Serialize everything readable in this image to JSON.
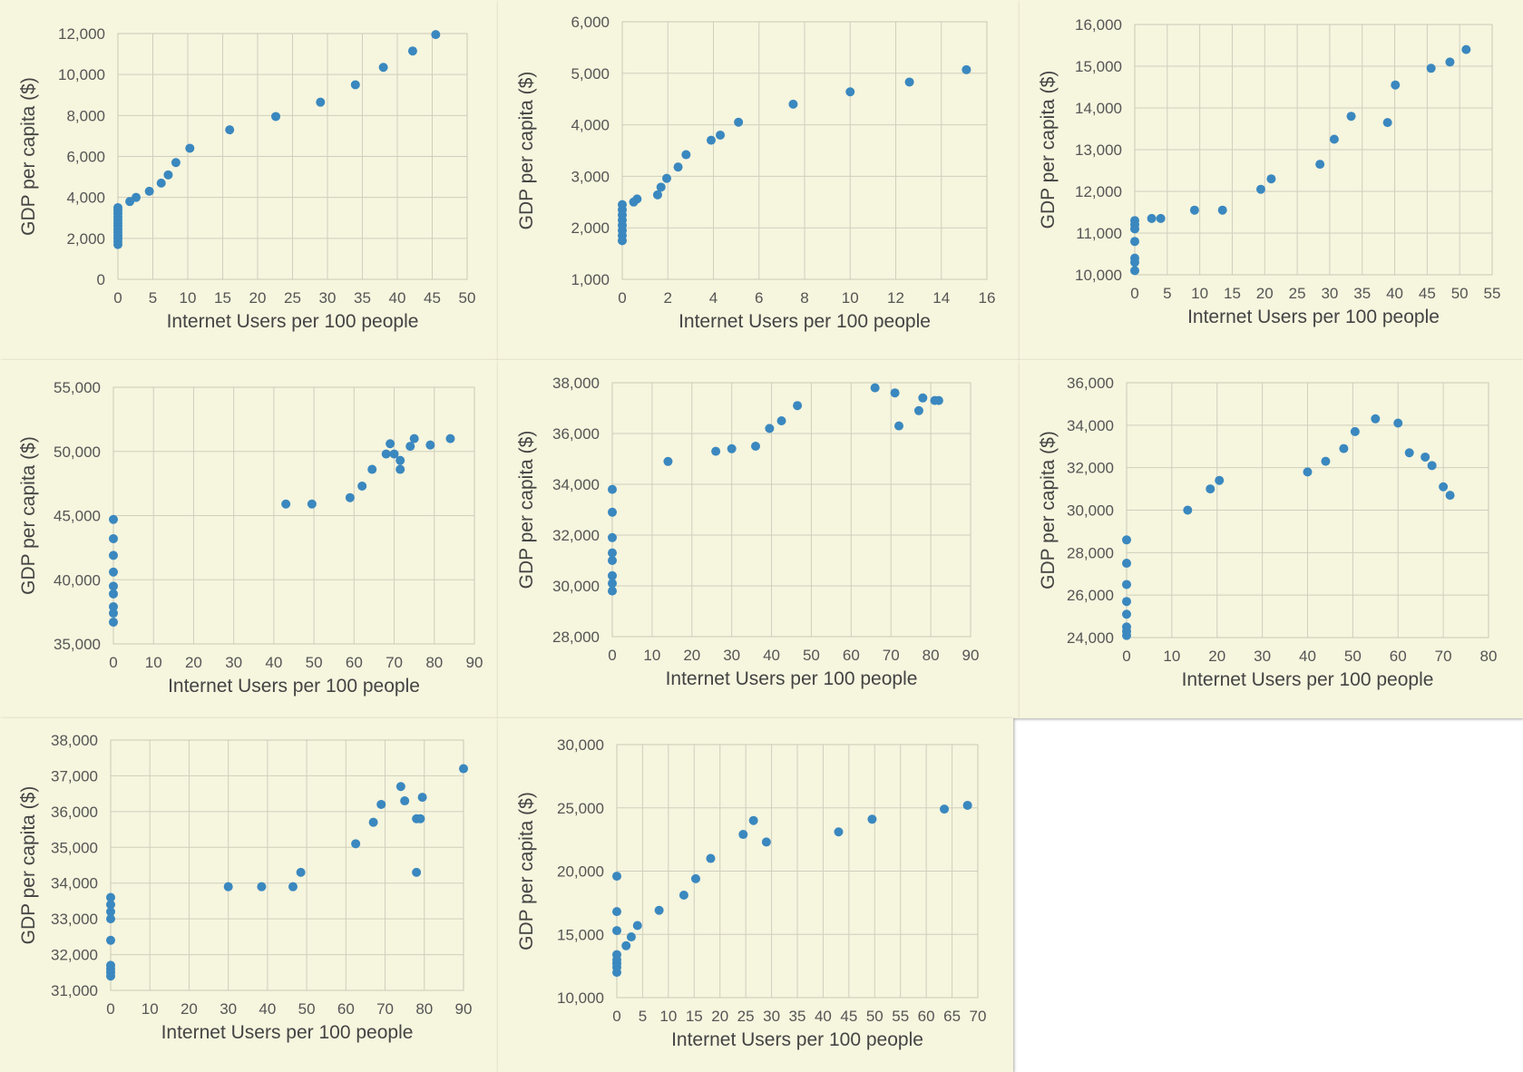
{
  "colors": {
    "point": "#3a88bf",
    "panel": "#f6f5de",
    "grid": "#cfcfbd"
  },
  "chart_data": [
    {
      "type": "scatter",
      "xlabel": "Internet Users per 100 people",
      "ylabel": "GDP per capita ($)",
      "xlim": [
        0,
        50
      ],
      "ylim": [
        0,
        12000
      ],
      "xticks": [
        0,
        5,
        10,
        15,
        20,
        25,
        30,
        35,
        40,
        45,
        50
      ],
      "yticks": [
        0,
        2000,
        4000,
        6000,
        8000,
        10000,
        12000
      ],
      "grid": true,
      "points": [
        [
          0,
          1700
        ],
        [
          0,
          1850
        ],
        [
          0,
          2000
        ],
        [
          0,
          2150
        ],
        [
          0,
          2300
        ],
        [
          0,
          2450
        ],
        [
          0,
          2600
        ],
        [
          0,
          2750
        ],
        [
          0,
          2900
        ],
        [
          0,
          3050
        ],
        [
          0,
          3200
        ],
        [
          0,
          3350
        ],
        [
          0,
          3500
        ],
        [
          1.7,
          3800
        ],
        [
          2.6,
          4000
        ],
        [
          4.5,
          4300
        ],
        [
          6.2,
          4700
        ],
        [
          7.2,
          5100
        ],
        [
          8.3,
          5700
        ],
        [
          10.3,
          6400
        ],
        [
          16,
          7300
        ],
        [
          22.6,
          7950
        ],
        [
          29,
          8650
        ],
        [
          34,
          9500
        ],
        [
          38,
          10350
        ],
        [
          42.2,
          11150
        ],
        [
          45.5,
          11950
        ]
      ]
    },
    {
      "type": "scatter",
      "xlabel": "Internet Users per 100 people",
      "ylabel": "GDP per capita ($)",
      "xlim": [
        0,
        16
      ],
      "ylim": [
        1000,
        6000
      ],
      "xticks": [
        0,
        2,
        4,
        6,
        8,
        10,
        12,
        14,
        16
      ],
      "yticks": [
        1000,
        2000,
        3000,
        4000,
        5000,
        6000
      ],
      "grid": true,
      "points": [
        [
          0,
          1750
        ],
        [
          0,
          1850
        ],
        [
          0,
          1950
        ],
        [
          0,
          2050
        ],
        [
          0,
          2150
        ],
        [
          0,
          2250
        ],
        [
          0,
          2350
        ],
        [
          0,
          2450
        ],
        [
          0.5,
          2500
        ],
        [
          0.65,
          2560
        ],
        [
          1.55,
          2640
        ],
        [
          1.7,
          2790
        ],
        [
          1.95,
          2960
        ],
        [
          2.45,
          3180
        ],
        [
          2.8,
          3420
        ],
        [
          3.9,
          3700
        ],
        [
          4.3,
          3800
        ],
        [
          5.1,
          4050
        ],
        [
          7.5,
          4400
        ],
        [
          10,
          4640
        ],
        [
          12.6,
          4830
        ],
        [
          15.1,
          5070
        ]
      ]
    },
    {
      "type": "scatter",
      "xlabel": "Internet Users per 100 people",
      "ylabel": "GDP per capita ($)",
      "xlim": [
        0,
        55
      ],
      "ylim": [
        10000,
        16000
      ],
      "xticks": [
        0,
        5,
        10,
        15,
        20,
        25,
        30,
        35,
        40,
        45,
        50,
        55
      ],
      "yticks": [
        10000,
        11000,
        12000,
        13000,
        14000,
        15000,
        16000
      ],
      "grid": true,
      "points": [
        [
          0,
          10100
        ],
        [
          0,
          10300
        ],
        [
          0,
          10400
        ],
        [
          0,
          10800
        ],
        [
          0,
          11100
        ],
        [
          0,
          11200
        ],
        [
          0,
          11300
        ],
        [
          2.6,
          11350
        ],
        [
          4,
          11350
        ],
        [
          9.2,
          11550
        ],
        [
          13.5,
          11550
        ],
        [
          19.4,
          12050
        ],
        [
          21,
          12300
        ],
        [
          28.5,
          12650
        ],
        [
          30.7,
          13250
        ],
        [
          33.3,
          13800
        ],
        [
          38.9,
          13650
        ],
        [
          40.1,
          14550
        ],
        [
          45.6,
          14950
        ],
        [
          48.5,
          15100
        ],
        [
          51,
          15400
        ]
      ]
    },
    {
      "type": "scatter",
      "xlabel": "Internet Users per 100 people",
      "ylabel": "GDP per capita ($)",
      "xlim": [
        0,
        90
      ],
      "ylim": [
        35000,
        55000
      ],
      "xticks": [
        0,
        10,
        20,
        30,
        40,
        50,
        60,
        70,
        80,
        90
      ],
      "yticks": [
        35000,
        40000,
        45000,
        50000,
        55000
      ],
      "grid": true,
      "points": [
        [
          0,
          36700
        ],
        [
          0,
          37400
        ],
        [
          0,
          37900
        ],
        [
          0,
          38900
        ],
        [
          0,
          39500
        ],
        [
          0,
          40600
        ],
        [
          0,
          41900
        ],
        [
          0,
          43200
        ],
        [
          0,
          44700
        ],
        [
          43,
          45900
        ],
        [
          49.5,
          45900
        ],
        [
          59,
          46400
        ],
        [
          62,
          47300
        ],
        [
          64.5,
          48600
        ],
        [
          68,
          49800
        ],
        [
          69,
          50600
        ],
        [
          70,
          49800
        ],
        [
          71.5,
          48600
        ],
        [
          71.5,
          49300
        ],
        [
          74,
          50400
        ],
        [
          75,
          51000
        ],
        [
          79,
          50500
        ],
        [
          84,
          51000
        ]
      ]
    },
    {
      "type": "scatter",
      "xlabel": "Internet Users per 100 people",
      "ylabel": "GDP per capita ($)",
      "xlim": [
        0,
        90
      ],
      "ylim": [
        28000,
        38000
      ],
      "xticks": [
        0,
        10,
        20,
        30,
        40,
        50,
        60,
        70,
        80,
        90
      ],
      "yticks": [
        28000,
        30000,
        32000,
        34000,
        36000,
        38000
      ],
      "grid": true,
      "points": [
        [
          0,
          29800
        ],
        [
          0,
          30100
        ],
        [
          0,
          30400
        ],
        [
          0,
          31000
        ],
        [
          0,
          31300
        ],
        [
          0,
          31900
        ],
        [
          0,
          32900
        ],
        [
          0,
          33800
        ],
        [
          14,
          34900
        ],
        [
          26,
          35300
        ],
        [
          30,
          35400
        ],
        [
          36,
          35500
        ],
        [
          39.5,
          36200
        ],
        [
          42.5,
          36500
        ],
        [
          46.5,
          37100
        ],
        [
          66,
          37800
        ],
        [
          71,
          37600
        ],
        [
          72,
          36300
        ],
        [
          77,
          36900
        ],
        [
          78,
          37400
        ],
        [
          81,
          37300
        ],
        [
          82,
          37300
        ]
      ]
    },
    {
      "type": "scatter",
      "xlabel": "Internet Users per 100 people",
      "ylabel": "GDP per capita ($)",
      "xlim": [
        0,
        80
      ],
      "ylim": [
        24000,
        36000
      ],
      "xticks": [
        0,
        10,
        20,
        30,
        40,
        50,
        60,
        70,
        80
      ],
      "yticks": [
        24000,
        26000,
        28000,
        30000,
        32000,
        34000,
        36000
      ],
      "grid": true,
      "points": [
        [
          0,
          24100
        ],
        [
          0,
          24300
        ],
        [
          0,
          24500
        ],
        [
          0,
          25100
        ],
        [
          0,
          25700
        ],
        [
          0,
          26500
        ],
        [
          0,
          27500
        ],
        [
          0,
          28600
        ],
        [
          13.5,
          30000
        ],
        [
          18.5,
          31000
        ],
        [
          20.5,
          31400
        ],
        [
          40,
          31800
        ],
        [
          44,
          32300
        ],
        [
          48,
          32900
        ],
        [
          50.5,
          33700
        ],
        [
          55,
          34300
        ],
        [
          60,
          34100
        ],
        [
          62.5,
          32700
        ],
        [
          66,
          32500
        ],
        [
          67.5,
          32100
        ],
        [
          70,
          31100
        ],
        [
          71.5,
          30700
        ]
      ]
    },
    {
      "type": "scatter",
      "xlabel": "Internet Users per 100 people",
      "ylabel": "GDP per capita ($)",
      "xlim": [
        0,
        90
      ],
      "ylim": [
        31000,
        38000
      ],
      "xticks": [
        0,
        10,
        20,
        30,
        40,
        50,
        60,
        70,
        80,
        90
      ],
      "yticks": [
        31000,
        32000,
        33000,
        34000,
        35000,
        36000,
        37000,
        38000
      ],
      "grid": true,
      "points": [
        [
          0,
          31400
        ],
        [
          0,
          31500
        ],
        [
          0,
          31600
        ],
        [
          0,
          31700
        ],
        [
          0,
          32400
        ],
        [
          0,
          33000
        ],
        [
          0,
          33200
        ],
        [
          0,
          33400
        ],
        [
          0,
          33600
        ],
        [
          30,
          33900
        ],
        [
          38.5,
          33900
        ],
        [
          46.5,
          33900
        ],
        [
          48.5,
          34300
        ],
        [
          62.5,
          35100
        ],
        [
          67,
          35700
        ],
        [
          69,
          36200
        ],
        [
          74,
          36700
        ],
        [
          75,
          36300
        ],
        [
          78,
          34300
        ],
        [
          78,
          35800
        ],
        [
          79,
          35800
        ],
        [
          79.5,
          36400
        ],
        [
          90,
          37200
        ]
      ]
    },
    {
      "type": "scatter",
      "xlabel": "Internet Users per 100 people",
      "ylabel": "GDP per capita ($)",
      "xlim": [
        0,
        70
      ],
      "ylim": [
        10000,
        30000
      ],
      "xticks": [
        0,
        5,
        10,
        15,
        20,
        25,
        30,
        35,
        40,
        45,
        50,
        55,
        60,
        65,
        70
      ],
      "yticks": [
        10000,
        15000,
        20000,
        25000,
        30000
      ],
      "grid": true,
      "points": [
        [
          0,
          12000
        ],
        [
          0,
          12400
        ],
        [
          0,
          12700
        ],
        [
          0,
          13000
        ],
        [
          0,
          13400
        ],
        [
          0,
          15300
        ],
        [
          0,
          16800
        ],
        [
          0,
          19600
        ],
        [
          1.8,
          14100
        ],
        [
          2.8,
          14800
        ],
        [
          4,
          15700
        ],
        [
          8.2,
          16900
        ],
        [
          13,
          18100
        ],
        [
          15.3,
          19400
        ],
        [
          18.2,
          21000
        ],
        [
          24.5,
          22900
        ],
        [
          26.5,
          24000
        ],
        [
          29,
          22300
        ],
        [
          43,
          23100
        ],
        [
          49.5,
          24100
        ],
        [
          63.5,
          24900
        ],
        [
          68,
          25200
        ]
      ]
    }
  ]
}
